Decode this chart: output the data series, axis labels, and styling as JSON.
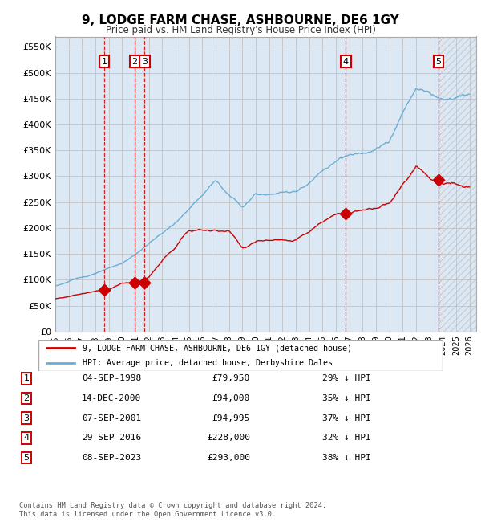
{
  "title": "9, LODGE FARM CHASE, ASHBOURNE, DE6 1GY",
  "subtitle": "Price paid vs. HM Land Registry's House Price Index (HPI)",
  "ylim": [
    0,
    570000
  ],
  "xlim_start": 1995.0,
  "xlim_end": 2026.5,
  "yticks": [
    0,
    50000,
    100000,
    150000,
    200000,
    250000,
    300000,
    350000,
    400000,
    450000,
    500000,
    550000
  ],
  "ytick_labels": [
    "£0",
    "£50K",
    "£100K",
    "£150K",
    "£200K",
    "£250K",
    "£300K",
    "£350K",
    "£400K",
    "£450K",
    "£500K",
    "£550K"
  ],
  "xticks": [
    1995,
    1996,
    1997,
    1998,
    1999,
    2000,
    2001,
    2002,
    2003,
    2004,
    2005,
    2006,
    2007,
    2008,
    2009,
    2010,
    2011,
    2012,
    2013,
    2014,
    2015,
    2016,
    2017,
    2018,
    2019,
    2020,
    2021,
    2022,
    2023,
    2024,
    2025,
    2026
  ],
  "sale_dates": [
    1998.67,
    2000.95,
    2001.68,
    2016.74,
    2023.68
  ],
  "sale_prices": [
    79950,
    94000,
    94995,
    228000,
    293000
  ],
  "sale_labels": [
    "1",
    "2",
    "3",
    "4",
    "5"
  ],
  "legend_line1": "9, LODGE FARM CHASE, ASHBOURNE, DE6 1GY (detached house)",
  "legend_line2": "HPI: Average price, detached house, Derbyshire Dales",
  "table_data": [
    [
      "1",
      "04-SEP-1998",
      "£79,950",
      "29% ↓ HPI"
    ],
    [
      "2",
      "14-DEC-2000",
      "£94,000",
      "35% ↓ HPI"
    ],
    [
      "3",
      "07-SEP-2001",
      "£94,995",
      "37% ↓ HPI"
    ],
    [
      "4",
      "29-SEP-2016",
      "£228,000",
      "32% ↓ HPI"
    ],
    [
      "5",
      "08-SEP-2023",
      "£293,000",
      "38% ↓ HPI"
    ]
  ],
  "footer": "Contains HM Land Registry data © Crown copyright and database right 2024.\nThis data is licensed under the Open Government Licence v3.0.",
  "hpi_color": "#6aaed6",
  "price_color": "#cc0000",
  "bg_color": "#dce9f5",
  "grid_color": "#bbbbbb",
  "vline_color": "#cc0000",
  "label_box_color": "#cc0000"
}
